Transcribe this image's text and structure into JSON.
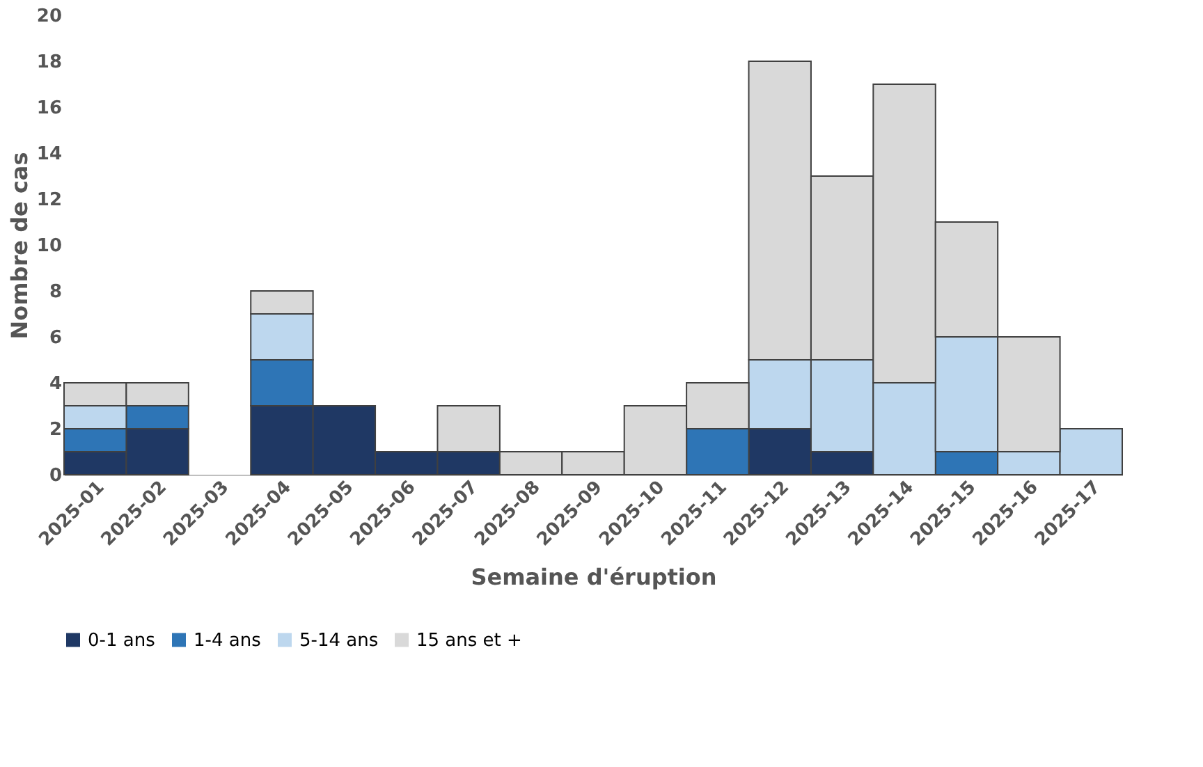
{
  "chart_data": {
    "type": "bar",
    "stacked": true,
    "xlabel": "Semaine d'éruption",
    "ylabel": "Nombre de cas",
    "categories": [
      "2025-01",
      "2025-02",
      "2025-03",
      "2025-04",
      "2025-05",
      "2025-06",
      "2025-07",
      "2025-08",
      "2025-09",
      "2025-10",
      "2025-11",
      "2025-12",
      "2025-13",
      "2025-14",
      "2025-15",
      "2025-16",
      "2025-17"
    ],
    "series": [
      {
        "name": "0-1 ans",
        "color": "#1f3864",
        "values": [
          1,
          2,
          0,
          3,
          3,
          1,
          1,
          0,
          0,
          0,
          0,
          2,
          1,
          0,
          0,
          0,
          0
        ]
      },
      {
        "name": "1-4 ans",
        "color": "#2e75b6",
        "values": [
          1,
          1,
          0,
          2,
          0,
          0,
          0,
          0,
          0,
          0,
          2,
          0,
          0,
          0,
          1,
          0,
          0
        ]
      },
      {
        "name": "5-14 ans",
        "color": "#bdd7ee",
        "values": [
          1,
          0,
          0,
          2,
          0,
          0,
          0,
          0,
          0,
          0,
          0,
          3,
          4,
          4,
          5,
          1,
          2
        ]
      },
      {
        "name": "15 ans et +",
        "color": "#d9d9d9",
        "values": [
          1,
          1,
          0,
          1,
          0,
          0,
          2,
          1,
          1,
          3,
          2,
          13,
          8,
          13,
          5,
          5,
          0
        ]
      }
    ],
    "ylim": [
      0,
      20
    ],
    "yticks": [
      0,
      2,
      4,
      6,
      8,
      10,
      12,
      14,
      16,
      18,
      20
    ],
    "grid": false,
    "legend": "bottom"
  }
}
